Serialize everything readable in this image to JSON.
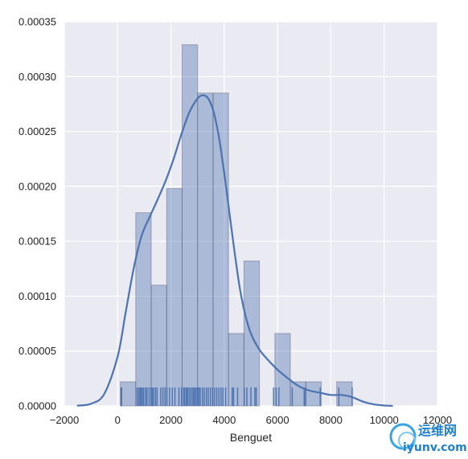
{
  "chart_data": {
    "type": "bar",
    "subtype": "histogram with kde curve and rug",
    "title": "",
    "xlabel": "Benguet",
    "ylabel": "",
    "xlim": [
      -2000,
      12000
    ],
    "ylim": [
      0,
      0.00035
    ],
    "xticks": [
      -2000,
      0,
      2000,
      4000,
      6000,
      8000,
      10000,
      12000
    ],
    "xtick_labels": [
      "−2000",
      "0",
      "2000",
      "4000",
      "6000",
      "8000",
      "10000",
      "12000"
    ],
    "yticks": [
      0,
      5e-05,
      0.0001,
      0.00015,
      0.0002,
      0.00025,
      0.0003,
      0.00035
    ],
    "ytick_labels": [
      "0.00000",
      "0.00005",
      "0.00010",
      "0.00015",
      "0.00020",
      "0.00025",
      "0.00030",
      "0.00035"
    ],
    "grid": true,
    "background": "#eaeaf2",
    "bar_color": "#4c72b0",
    "line_color": "#4c72b0",
    "histogram": {
      "bin_edges": [
        100,
        680,
        1260,
        1840,
        2420,
        3000,
        3580,
        4160,
        4740,
        5320,
        5900,
        6480,
        7060,
        7640,
        8220,
        8800
      ],
      "density": [
        2.2e-05,
        0.000176,
        0.00011,
        0.000198,
        0.000329,
        0.000285,
        0.000285,
        6.6e-05,
        0.000132,
        0.0,
        6.6e-05,
        2.2e-05,
        2.2e-05,
        0.0,
        2.2e-05
      ]
    },
    "kde": {
      "x": [
        -1500,
        -1000,
        -500,
        0,
        300,
        600,
        900,
        1200,
        1500,
        1800,
        2100,
        2400,
        2700,
        3000,
        3200,
        3400,
        3600,
        3800,
        4000,
        4200,
        4400,
        4600,
        4800,
        5000,
        5300,
        5600,
        6000,
        6400,
        6800,
        7200,
        7600,
        8000,
        8400,
        8800,
        9200,
        9600,
        10000,
        10300
      ],
      "y": [
        3e-07,
        2e-06,
        1.1e-05,
        4.5e-05,
        8.5e-05,
        0.000125,
        0.000155,
        0.000172,
        0.000188,
        0.000205,
        0.000225,
        0.000248,
        0.000268,
        0.00028,
        0.000283,
        0.00028,
        0.000268,
        0.000245,
        0.000212,
        0.000175,
        0.000138,
        0.000105,
        8.2e-05,
        6.6e-05,
        5.2e-05,
        4.3e-05,
        3.3e-05,
        2.5e-05,
        1.8e-05,
        1.4e-05,
        1.2e-05,
        1e-05,
        1e-05,
        8e-06,
        4e-06,
        1.5e-06,
        4e-07,
        1e-07
      ]
    },
    "rug": [
      130,
      150,
      730,
      790,
      840,
      880,
      930,
      980,
      1050,
      1100,
      1180,
      1250,
      1300,
      1350,
      1420,
      1480,
      1620,
      1700,
      1780,
      1850,
      1950,
      2050,
      2150,
      2300,
      2400,
      2480,
      2520,
      2580,
      2620,
      2680,
      2740,
      2800,
      2850,
      2900,
      2950,
      3000,
      3050,
      3100,
      3180,
      3250,
      3330,
      3400,
      3480,
      3560,
      3640,
      3720,
      3800,
      3880,
      3950,
      4050,
      4300,
      4350,
      4500,
      4750,
      4850,
      5000,
      5150,
      5200,
      5850,
      5950,
      6050,
      6550,
      7000,
      7050,
      7600,
      8300,
      8800
    ]
  },
  "watermark": {
    "cn_text": "运维网",
    "domain_text": "iyunv.com"
  }
}
